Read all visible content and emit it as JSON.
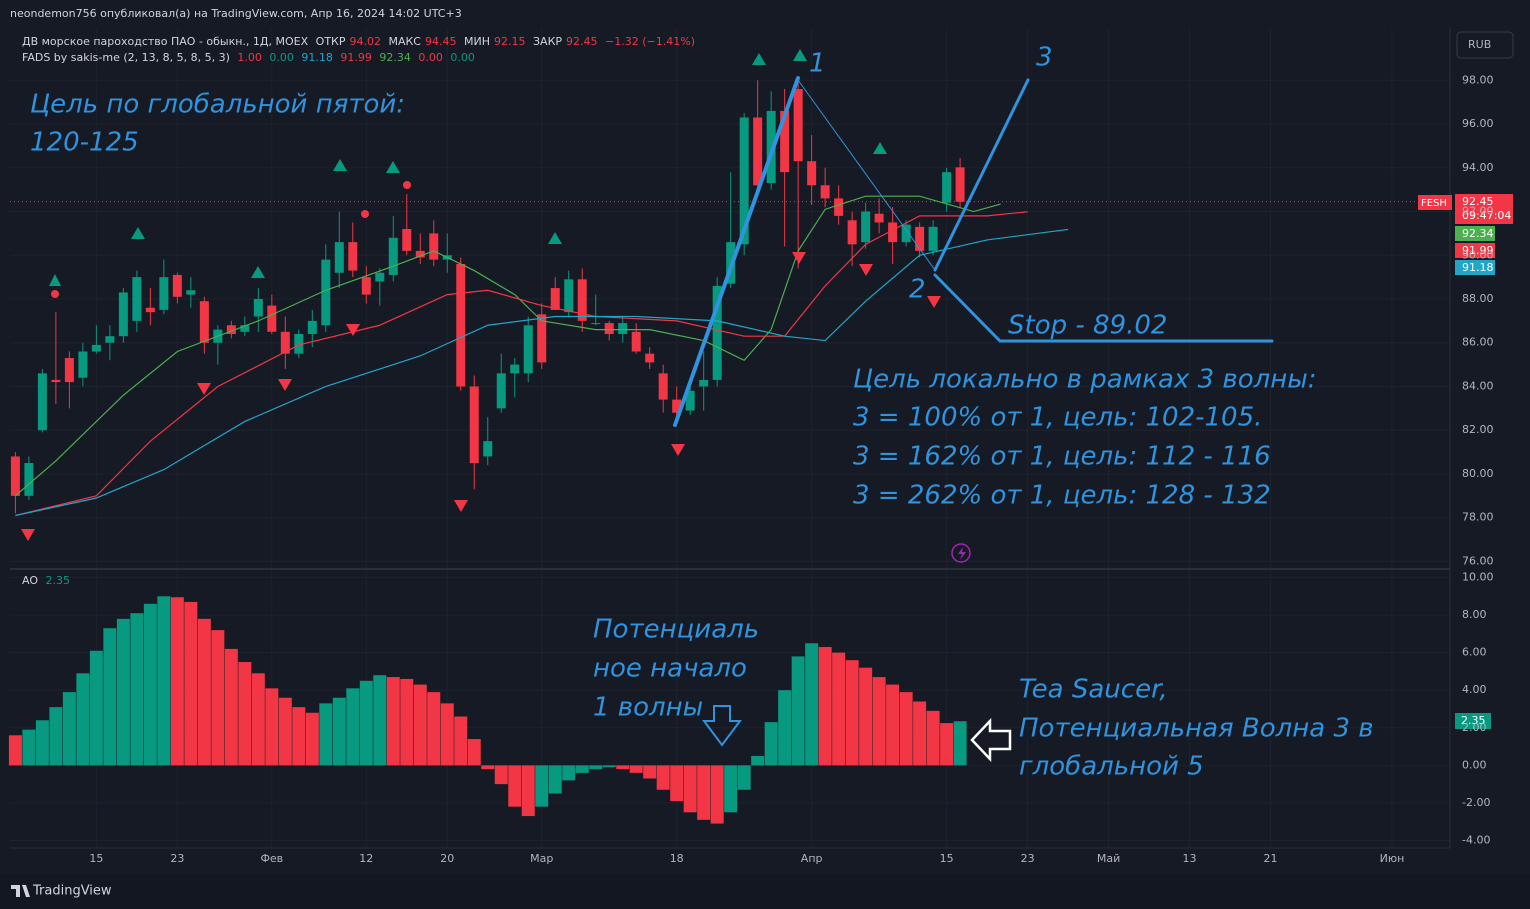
{
  "header": {
    "author_line": "neondemon756 опубликовал(а) на TradingView.com, Апр 16, 2024 14:02 UTC+3",
    "symbol": "ДВ морское пароходство ПАО - обыкн., 1Д, MOEX",
    "open_label": "ОТКР",
    "open": 94.02,
    "high_label": "МАКС",
    "high": 94.45,
    "low_label": "МИН",
    "low": 92.15,
    "close_label": "ЗАКР",
    "close": 92.45,
    "change": "−1.32 (−1.41%)",
    "indicator": "FADS by sakis-me (2, 13, 8, 5, 8, 5, 3)",
    "indicator_values": [
      {
        "value": 1,
        "label": "1.00"
      },
      {
        "value": 0,
        "label": "0.00"
      },
      91.18,
      91.99,
      92.34,
      {
        "value": 0,
        "label": "0.00"
      },
      {
        "value": 0,
        "label": "0.00"
      }
    ],
    "currency": "RUB",
    "ticker": "FESH",
    "price_tag": 92.45,
    "countdown": "09:47:04",
    "ma_tags": [
      92.34,
      91.99,
      91.18
    ]
  },
  "chart_data": [
    {
      "type": "candlestick",
      "up_color": "#089981",
      "down_color": "#f23645",
      "xlim": [
        -0.4,
        106.3
      ],
      "ylim": [
        75.7,
        100.3
      ],
      "xticks": [
        {
          "value": 6,
          "label": "15"
        },
        {
          "value": 12,
          "label": "23"
        },
        {
          "value": 19,
          "label": "Фев"
        },
        {
          "value": 26,
          "label": "12"
        },
        {
          "value": 32,
          "label": "20"
        },
        {
          "value": 39,
          "label": "Мар"
        },
        {
          "value": 49,
          "label": "18"
        },
        {
          "value": 59,
          "label": "Апр"
        },
        {
          "value": 69,
          "label": "15"
        },
        {
          "value": 75,
          "label": "23"
        },
        {
          "value": 81,
          "label": "Май"
        },
        {
          "value": 87,
          "label": "13"
        },
        {
          "value": 93,
          "label": "21"
        },
        {
          "value": 102,
          "label": "Июн"
        }
      ],
      "yticks": [
        {
          "value": 76,
          "label": "76.00"
        },
        {
          "value": 78,
          "label": "78.00"
        },
        {
          "value": 80,
          "label": "80.00"
        },
        {
          "value": 82,
          "label": "82.00"
        },
        {
          "value": 84,
          "label": "84.00"
        },
        {
          "value": 86,
          "label": "86.00"
        },
        {
          "value": 88,
          "label": "88.00"
        },
        {
          "value": 90,
          "label": "90.00"
        },
        {
          "value": 92,
          "label": "92.00"
        },
        {
          "value": 94,
          "label": "94.00"
        },
        {
          "value": 96,
          "label": "96.00"
        },
        {
          "value": 98,
          "label": "98.00"
        }
      ],
      "open": [
        80.8,
        79.0,
        82.0,
        84.3,
        85.3,
        84.4,
        85.6,
        86.0,
        86.3,
        87.0,
        87.6,
        87.5,
        89.1,
        88.2,
        87.9,
        86.0,
        86.8,
        86.5,
        87.2,
        87.7,
        86.5,
        85.5,
        86.4,
        86.8,
        89.2,
        90.6,
        89.0,
        88.8,
        89.1,
        91.2,
        90.2,
        91.0,
        89.8,
        89.6,
        84.0,
        80.8,
        83.0,
        84.6,
        84.6,
        87.3,
        88.5,
        87.4,
        88.9,
        86.9,
        86.9,
        86.4,
        86.5,
        85.5,
        84.6,
        83.4,
        82.9,
        84.0,
        84.3,
        88.7,
        90.5,
        96.3,
        93.3,
        96.6,
        97.6,
        94.3,
        93.2,
        92.6,
        91.6,
        90.6,
        91.9,
        91.5,
        90.6,
        91.3,
        90.2,
        92.4,
        94.02
      ],
      "high": [
        81.0,
        80.8,
        84.8,
        87.4,
        85.6,
        86.0,
        86.8,
        86.8,
        88.5,
        89.3,
        88.5,
        89.8,
        89.2,
        89.0,
        88.1,
        86.8,
        87.0,
        87.2,
        88.5,
        88.2,
        87.2,
        86.6,
        87.5,
        90.5,
        92.0,
        91.5,
        89.5,
        89.4,
        91.8,
        92.8,
        91.0,
        91.6,
        91.0,
        89.9,
        84.5,
        82.6,
        85.5,
        85.3,
        87.2,
        87.8,
        89.0,
        89.3,
        89.4,
        88.2,
        87.0,
        87.2,
        86.9,
        85.8,
        85.0,
        84.0,
        84.3,
        85.6,
        89.0,
        93.8,
        96.5,
        98.0,
        97.5,
        97.6,
        98.0,
        95.5,
        94.0,
        93.2,
        92.0,
        92.4,
        92.6,
        92.2,
        91.6,
        91.5,
        91.6,
        94.0,
        94.45
      ],
      "low": [
        78.2,
        78.8,
        81.9,
        83.2,
        83.0,
        84.0,
        85.5,
        85.2,
        86.0,
        86.5,
        86.8,
        87.3,
        87.8,
        87.6,
        85.5,
        85.0,
        86.2,
        86.3,
        86.5,
        86.4,
        84.8,
        85.3,
        85.8,
        86.5,
        88.5,
        89.0,
        87.8,
        87.7,
        88.8,
        90.0,
        89.6,
        89.5,
        89.2,
        83.8,
        79.3,
        80.4,
        82.8,
        83.5,
        84.2,
        84.8,
        87.5,
        87.2,
        86.5,
        86.8,
        86.1,
        86.0,
        85.5,
        84.8,
        82.8,
        82.6,
        82.7,
        82.9,
        84.0,
        88.5,
        90.0,
        92.7,
        93.0,
        90.4,
        89.4,
        92.3,
        92.2,
        91.4,
        89.5,
        90.3,
        91.0,
        89.6,
        90.4,
        89.9,
        90.0,
        92.0,
        92.15
      ],
      "close": [
        79.0,
        80.5,
        84.6,
        84.2,
        84.2,
        85.6,
        85.9,
        86.3,
        88.3,
        89.0,
        87.4,
        89.0,
        88.1,
        88.4,
        86.0,
        86.6,
        86.4,
        86.8,
        88.0,
        86.5,
        85.5,
        86.4,
        87.0,
        89.8,
        90.6,
        89.3,
        88.2,
        89.2,
        90.8,
        90.2,
        89.9,
        89.8,
        90.0,
        84.0,
        80.5,
        81.5,
        84.6,
        85.0,
        86.8,
        85.1,
        87.5,
        88.9,
        87.0,
        86.9,
        86.4,
        86.9,
        85.6,
        85.1,
        83.4,
        82.8,
        83.8,
        84.3,
        88.6,
        90.6,
        96.3,
        93.2,
        96.6,
        93.8,
        94.3,
        93.2,
        92.6,
        91.8,
        90.5,
        92.0,
        91.5,
        90.6,
        91.4,
        90.2,
        91.3,
        93.8,
        92.45
      ],
      "series": [
        {
          "color": "#4caf50",
          "x": [
            0,
            3,
            8,
            12,
            18,
            23,
            28,
            31,
            34,
            37,
            39,
            43,
            47,
            51,
            54,
            56,
            58,
            60,
            63,
            67,
            71,
            73
          ],
          "values": [
            79.0,
            80.6,
            83.6,
            85.6,
            87.0,
            88.4,
            89.5,
            90.2,
            89.3,
            88.2,
            87.0,
            86.6,
            86.6,
            86.1,
            85.2,
            86.6,
            90.2,
            92.1,
            92.7,
            92.7,
            92.0,
            92.34
          ]
        },
        {
          "color": "#f23645",
          "x": [
            0,
            6,
            10,
            15,
            21,
            27,
            32,
            35,
            39,
            43,
            49,
            54,
            57,
            60,
            63,
            67,
            72,
            75
          ],
          "values": [
            78.1,
            79.0,
            81.5,
            84.0,
            85.9,
            86.8,
            88.2,
            88.4,
            87.7,
            87.2,
            87.0,
            86.3,
            86.3,
            88.6,
            90.5,
            91.8,
            91.8,
            91.99
          ]
        },
        {
          "color": "#22a6c8",
          "x": [
            0,
            6,
            11,
            17,
            23,
            30,
            35,
            40,
            46,
            52,
            57,
            60,
            63,
            67,
            72,
            78
          ],
          "values": [
            78.1,
            78.9,
            80.2,
            82.4,
            84.0,
            85.4,
            86.8,
            87.2,
            87.2,
            87.0,
            86.3,
            86.1,
            87.9,
            90.0,
            90.7,
            91.18
          ]
        }
      ]
    },
    {
      "type": "bar",
      "title": "AO",
      "last_value": 2.35,
      "up_color": "#089981",
      "down_color": "#f23645",
      "xlim": [
        -0.4,
        106.3
      ],
      "ylim": [
        -4.4,
        10.4
      ],
      "yticks": [
        {
          "value": -4,
          "label": "-4.00"
        },
        {
          "value": -2,
          "label": "-2.00"
        },
        {
          "value": 0,
          "label": "0.00"
        },
        {
          "value": 2,
          "label": "2.00"
        },
        {
          "value": 4,
          "label": "4.00"
        },
        {
          "value": 6,
          "label": "6.00"
        },
        {
          "value": 8,
          "label": "8.00"
        },
        {
          "value": 10,
          "label": "10.00"
        }
      ],
      "values": [
        1.6,
        1.9,
        2.4,
        3.1,
        3.9,
        4.9,
        6.1,
        7.3,
        7.8,
        8.1,
        8.6,
        9.0,
        8.95,
        8.7,
        7.8,
        7.2,
        6.2,
        5.5,
        4.9,
        4.1,
        3.6,
        3.1,
        2.8,
        3.3,
        3.6,
        4.1,
        4.5,
        4.8,
        4.7,
        4.6,
        4.3,
        3.9,
        3.3,
        2.6,
        1.4,
        -0.2,
        -1.0,
        -2.2,
        -2.7,
        -2.2,
        -1.5,
        -0.8,
        -0.4,
        -0.2,
        -0.1,
        -0.2,
        -0.4,
        -0.7,
        -1.3,
        -1.9,
        -2.5,
        -2.9,
        -3.1,
        -2.5,
        -1.3,
        0.5,
        2.3,
        4.0,
        5.8,
        6.5,
        6.3,
        6.0,
        5.6,
        5.2,
        4.7,
        4.3,
        3.9,
        3.4,
        2.9,
        2.25,
        2.35
      ]
    }
  ],
  "annotations": {
    "global_target": [
      "Цель по глобальной пятой:",
      "120-125"
    ],
    "wave_labels": [
      "1",
      "2",
      "3"
    ],
    "stop": "Stop - 89.02",
    "local_target": [
      "Цель локально в рамках 3 волны:",
      "3 = 100% от 1, цель: 102-105.",
      "3 = 162% от 1, цель: 112 - 116",
      "3 = 262% от 1, цель: 128 - 132"
    ],
    "wave1_note": [
      "Потенциаль",
      "ное начало",
      "1 волны"
    ],
    "saucer_note": [
      "Tea Saucer,",
      "Потенциальная Волна 3 в",
      "глобальной 5"
    ]
  },
  "footer": {
    "brand": "TradingView"
  }
}
